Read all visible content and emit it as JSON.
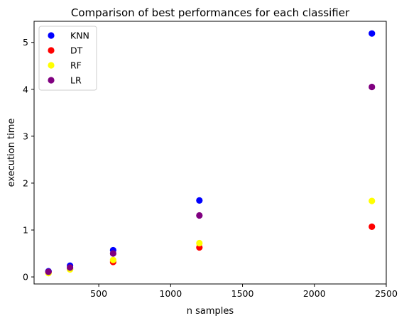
{
  "chart_data": {
    "type": "scatter",
    "title": "Comparison of best performances for each classifier",
    "xlabel": "n samples",
    "ylabel": "execution time",
    "xlim": [
      50,
      2500
    ],
    "ylim": [
      -0.15,
      5.45
    ],
    "xticks": [
      500,
      1000,
      1500,
      2000,
      2500
    ],
    "yticks": [
      0,
      1,
      2,
      3,
      4,
      5
    ],
    "grid": false,
    "legend": "top-left",
    "series": [
      {
        "name": "KNN",
        "color": "#0000ff",
        "x": [
          150,
          300,
          600,
          1200,
          2400
        ],
        "y": [
          0.12,
          0.24,
          0.57,
          1.63,
          5.19
        ]
      },
      {
        "name": "DT",
        "color": "#ff0000",
        "x": [
          150,
          300,
          600,
          1200,
          2400
        ],
        "y": [
          0.09,
          0.17,
          0.32,
          0.63,
          1.07
        ]
      },
      {
        "name": "RF",
        "color": "#ffff00",
        "x": [
          150,
          300,
          600,
          1200,
          2400
        ],
        "y": [
          0.08,
          0.16,
          0.36,
          0.72,
          1.62
        ]
      },
      {
        "name": "LR",
        "color": "#800080",
        "x": [
          150,
          300,
          600,
          1200,
          2400
        ],
        "y": [
          0.11,
          0.2,
          0.5,
          1.31,
          4.05
        ]
      }
    ]
  }
}
